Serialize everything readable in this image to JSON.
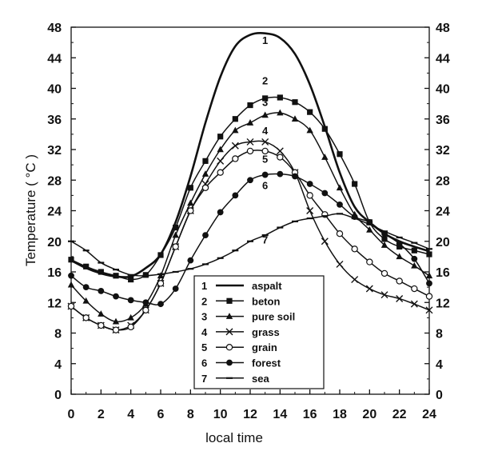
{
  "chart_data": {
    "type": "line",
    "xlabel": "local time",
    "ylabel": "Temperature ( °C )",
    "xlim": [
      0,
      24
    ],
    "ylim": [
      0,
      48
    ],
    "x_ticks": [
      0,
      2,
      4,
      6,
      8,
      10,
      12,
      14,
      16,
      18,
      20,
      22,
      24
    ],
    "y_ticks": [
      0,
      4,
      8,
      12,
      16,
      20,
      24,
      28,
      32,
      36,
      40,
      44,
      48
    ],
    "grid": false,
    "legend_position": "bottom-center",
    "series": [
      {
        "name": "aspalt",
        "number": "1",
        "marker": "none",
        "x": [
          0,
          1,
          2,
          3,
          4,
          5,
          6,
          7,
          8,
          9,
          10,
          11,
          12,
          13,
          14,
          15,
          16,
          17,
          18,
          19,
          20,
          21,
          22,
          23,
          24
        ],
        "y": [
          17.5,
          16.5,
          15.8,
          15.4,
          15.4,
          16.5,
          18.3,
          22.5,
          28.5,
          35.5,
          41.5,
          45.5,
          47.0,
          47.2,
          46.6,
          44.5,
          40.5,
          35.0,
          29.0,
          24.5,
          22.5,
          21.0,
          20.0,
          19.3,
          18.7
        ]
      },
      {
        "name": "beton",
        "number": "2",
        "marker": "square",
        "x": [
          0,
          1,
          2,
          3,
          4,
          5,
          6,
          7,
          8,
          9,
          10,
          11,
          12,
          13,
          14,
          15,
          16,
          17,
          18,
          19,
          20,
          21,
          22,
          23,
          24
        ],
        "y": [
          17.6,
          16.7,
          16.0,
          15.5,
          15.0,
          15.6,
          18.2,
          21.8,
          27.0,
          30.5,
          33.7,
          36.0,
          37.8,
          38.7,
          38.8,
          38.2,
          36.9,
          34.7,
          31.4,
          27.5,
          22.5,
          20.3,
          19.3,
          18.8,
          18.3
        ]
      },
      {
        "name": "pure soil",
        "number": "3",
        "marker": "triangle",
        "x": [
          0,
          1,
          2,
          3,
          4,
          5,
          6,
          7,
          8,
          9,
          10,
          11,
          12,
          13,
          14,
          15,
          16,
          17,
          18,
          19,
          20,
          21,
          22,
          23,
          24
        ],
        "y": [
          14.3,
          12.2,
          10.5,
          9.5,
          10.0,
          11.8,
          15.5,
          20.8,
          25.0,
          28.8,
          32.0,
          34.5,
          35.5,
          36.5,
          36.8,
          36.0,
          34.5,
          31.0,
          27.0,
          23.5,
          21.5,
          19.5,
          18.0,
          16.8,
          15.5
        ]
      },
      {
        "name": "grass",
        "number": "4",
        "marker": "x",
        "x": [
          0,
          1,
          2,
          3,
          4,
          5,
          6,
          7,
          8,
          9,
          10,
          11,
          12,
          13,
          14,
          15,
          16,
          17,
          18,
          19,
          20,
          21,
          22,
          23,
          24
        ],
        "y": [
          11.5,
          10.0,
          9.0,
          8.4,
          9.0,
          11.0,
          14.5,
          19.3,
          24.0,
          27.5,
          30.5,
          32.5,
          33.0,
          33.0,
          31.8,
          29.0,
          24.0,
          20.0,
          17.0,
          15.0,
          13.8,
          13.0,
          12.5,
          11.8,
          11.0
        ]
      },
      {
        "name": "grain",
        "number": "5",
        "marker": "circle-open",
        "x": [
          0,
          1,
          2,
          3,
          4,
          5,
          6,
          7,
          8,
          9,
          10,
          11,
          12,
          13,
          14,
          15,
          16,
          17,
          18,
          19,
          20,
          21,
          22,
          23,
          24
        ],
        "y": [
          11.5,
          10.0,
          9.0,
          8.4,
          8.8,
          11.0,
          14.5,
          19.3,
          24.0,
          27.0,
          29.0,
          30.8,
          31.8,
          31.8,
          31.0,
          29.0,
          26.0,
          23.5,
          21.0,
          19.0,
          17.3,
          15.8,
          14.8,
          13.8,
          12.8
        ]
      },
      {
        "name": "forest",
        "number": "6",
        "marker": "circle-filled",
        "x": [
          0,
          1,
          2,
          3,
          4,
          5,
          6,
          7,
          8,
          9,
          10,
          11,
          12,
          13,
          14,
          15,
          16,
          17,
          18,
          19,
          20,
          21,
          22,
          23,
          24
        ],
        "y": [
          15.5,
          14.0,
          13.5,
          12.8,
          12.3,
          12.0,
          11.8,
          13.8,
          17.5,
          20.8,
          23.8,
          26.0,
          28.0,
          28.7,
          28.8,
          28.5,
          27.5,
          26.3,
          24.8,
          23.2,
          22.5,
          21.0,
          19.7,
          17.7,
          14.5
        ]
      },
      {
        "name": "sea",
        "number": "7",
        "marker": "dash",
        "x": [
          0,
          1,
          2,
          3,
          4,
          5,
          6,
          7,
          8,
          9,
          10,
          11,
          12,
          13,
          14,
          15,
          16,
          17,
          18,
          19,
          20,
          21,
          22,
          23,
          24
        ],
        "y": [
          20.0,
          18.8,
          17.2,
          16.3,
          15.6,
          15.5,
          15.7,
          16.0,
          16.4,
          17.0,
          17.8,
          18.8,
          20.0,
          20.8,
          21.8,
          22.6,
          23.0,
          23.3,
          23.6,
          23.0,
          22.2,
          21.3,
          20.5,
          19.8,
          19.0
        ]
      }
    ],
    "curve_labels": [
      {
        "text": "1",
        "x": 13.0,
        "y": 45.8
      },
      {
        "text": "2",
        "x": 13.0,
        "y": 40.5
      },
      {
        "text": "3",
        "x": 13.0,
        "y": 37.7
      },
      {
        "text": "4",
        "x": 13.0,
        "y": 34.0
      },
      {
        "text": "5",
        "x": 13.0,
        "y": 30.3
      },
      {
        "text": "6",
        "x": 13.0,
        "y": 26.8
      },
      {
        "text": "7",
        "x": 13.0,
        "y": 19.7
      }
    ]
  }
}
